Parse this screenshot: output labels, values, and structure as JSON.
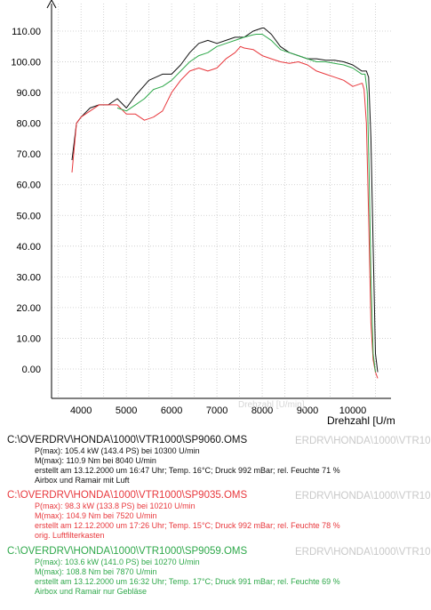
{
  "chart_data": {
    "type": "line",
    "title": "",
    "xlabel": "Drehzahl [U/m",
    "ylabel": "",
    "xlim": [
      3400,
      10700
    ],
    "ylim": [
      -5,
      114
    ],
    "xticks": [
      "4000",
      "5000",
      "6000",
      "7000",
      "8000",
      "9000",
      "10000"
    ],
    "yticks": [
      "110.00",
      "100.00",
      "90.00",
      "80.00",
      "70.00",
      "60.00",
      "50.00",
      "40.00",
      "30.00",
      "20.00",
      "10.00",
      "0.00"
    ],
    "grid": true,
    "series": [
      {
        "name": "C:\\OVERDRV\\HONDA\\1000\\VTR1000\\SP9060.OMS",
        "color": "#111111",
        "x": [
          3800,
          3900,
          4000,
          4200,
          4400,
          4600,
          4800,
          5000,
          5200,
          5500,
          5800,
          6000,
          6200,
          6400,
          6600,
          6800,
          7000,
          7200,
          7400,
          7600,
          7800,
          8000,
          8040,
          8200,
          8400,
          8600,
          8800,
          9000,
          9200,
          9400,
          9600,
          9800,
          10000,
          10200,
          10300,
          10350,
          10400,
          10450,
          10500,
          10550
        ],
        "y": [
          68,
          80,
          82,
          85,
          86,
          86,
          88,
          85,
          89,
          94,
          96,
          96,
          99,
          103,
          106,
          107,
          106,
          107,
          108,
          108,
          110,
          111,
          111,
          109,
          105,
          103,
          102,
          101,
          101,
          100.5,
          100.5,
          100,
          99,
          97,
          97,
          95,
          75,
          40,
          5,
          -1
        ]
      },
      {
        "name": "C:\\OVERDRV\\HONDA\\1000\\VTR1000\\SP9035.OMS",
        "color": "#e8383d",
        "x": [
          3800,
          3900,
          4000,
          4200,
          4400,
          4600,
          4800,
          5000,
          5200,
          5400,
          5600,
          5800,
          6000,
          6200,
          6400,
          6600,
          6800,
          7000,
          7200,
          7400,
          7520,
          7600,
          7800,
          8000,
          8200,
          8400,
          8600,
          8800,
          9000,
          9200,
          9400,
          9600,
          9800,
          10000,
          10200,
          10210,
          10250,
          10300,
          10350,
          10400,
          10450,
          10500,
          10550
        ],
        "y": [
          64,
          80,
          82,
          84,
          86,
          86,
          86,
          83,
          83,
          81,
          82,
          84,
          90,
          94,
          97,
          98,
          97,
          98,
          101,
          103,
          105,
          104.5,
          104,
          102,
          101,
          100,
          99.5,
          100,
          99,
          97,
          96,
          95,
          94,
          92,
          93,
          93,
          91,
          80,
          50,
          15,
          3,
          -1,
          -3
        ]
      },
      {
        "name": "C:\\OVERDRV\\HONDA\\1000\\VTR1000\\SP9059.OMS",
        "color": "#2ea84a",
        "x": [
          4800,
          5000,
          5200,
          5400,
          5600,
          5800,
          6000,
          6200,
          6400,
          6600,
          6800,
          7000,
          7200,
          7400,
          7600,
          7800,
          7870,
          8000,
          8200,
          8400,
          8600,
          8800,
          9000,
          9200,
          9400,
          9600,
          9800,
          10000,
          10200,
          10270,
          10320,
          10360,
          10400,
          10450,
          10500
        ],
        "y": [
          85,
          84,
          86,
          88,
          91,
          92,
          94,
          97,
          100,
          102,
          103,
          105,
          106,
          107,
          108,
          108.8,
          109,
          109,
          107,
          104,
          103,
          102,
          101,
          100,
          100,
          99.5,
          99,
          98,
          96,
          96,
          90,
          65,
          30,
          5,
          -1
        ]
      }
    ]
  },
  "legend": {
    "entries": [
      {
        "path": "C:\\OVERDRV\\HONDA\\1000\\VTR1000\\SP9060.OMS",
        "p_max": "P(max): 105.4 kW (143.4 PS) bei 10300 U/min",
        "m_max": "M(max): 110.9 Nm bei 8040 U/min",
        "created": "erstellt am 13.12.2000 um 16:47 Uhr; Temp. 16°C; Druck 992 mBar; rel. Feuchte 71 %",
        "note": "Airbox und Ramair mit Luft"
      },
      {
        "path": "C:\\OVERDRV\\HONDA\\1000\\VTR1000\\SP9035.OMS",
        "p_max": "P(max): 98.3 kW (133.8 PS) bei 10210 U/min",
        "m_max": "M(max): 104.9 Nm bei 7520 U/min",
        "created": "erstellt am 12.12.2000 um 17:26 Uhr; Temp. 15°C; Druck 992 mBar; rel. Feuchte 78 %",
        "note": "orig. Luftfilterkasten"
      },
      {
        "path": "C:\\OVERDRV\\HONDA\\1000\\VTR1000\\SP9059.OMS",
        "p_max": "P(max): 103.6 kW (141.0 PS) bei 10270 U/min",
        "m_max": "M(max): 108.8 Nm bei 7870 U/min",
        "created": "erstellt am 13.12.2000 um 16:32 Uhr; Temp. 17°C; Druck 991 mBar; rel. Feuchte 69 %",
        "note": "Airbox und Ramair nur Gebläse"
      }
    ]
  },
  "bleed": {
    "axis_label": "Drehzahl [U/min]",
    "path1": "ERDRV\\HONDA\\1000\\VTR10",
    "path2": "ERDRV\\HONDA\\1000\\VTR10",
    "path3": "ERDRV\\HONDA\\1000\\VTR10"
  },
  "colors": {
    "grid": "#c8c8c8",
    "axis": "#000000"
  }
}
